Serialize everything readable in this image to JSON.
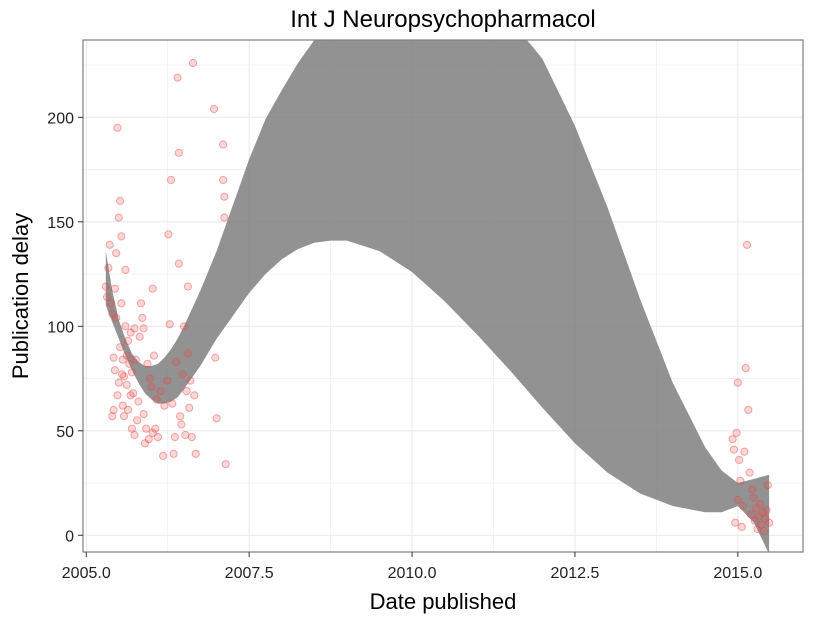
{
  "chart_data": {
    "type": "scatter",
    "title": "Int J Neuropsychopharmacol",
    "xlabel": "Date published",
    "ylabel": "Publication delay",
    "xlim": [
      2004.95,
      2016.0
    ],
    "ylim": [
      -8,
      237
    ],
    "x_ticks": [
      2005.0,
      2007.5,
      2010.0,
      2012.5,
      2015.0
    ],
    "x_tick_labels": [
      "2005.0",
      "2007.5",
      "2010.0",
      "2012.5",
      "2015.0"
    ],
    "y_ticks": [
      0,
      50,
      100,
      150,
      200
    ],
    "y_tick_labels": [
      "0",
      "50",
      "100",
      "150",
      "200"
    ],
    "grid": true,
    "colors": {
      "points": "#e8474a",
      "band": "#7a7a7a",
      "grid": "#ebebeb",
      "panel_border": "#7f7f7f"
    },
    "points": [
      [
        2005.3,
        119
      ],
      [
        2005.32,
        114
      ],
      [
        2005.34,
        128
      ],
      [
        2005.36,
        139
      ],
      [
        2005.38,
        111
      ],
      [
        2005.4,
        106
      ],
      [
        2005.4,
        57
      ],
      [
        2005.42,
        60
      ],
      [
        2005.42,
        85
      ],
      [
        2005.44,
        118
      ],
      [
        2005.44,
        79
      ],
      [
        2005.46,
        104
      ],
      [
        2005.46,
        135
      ],
      [
        2005.48,
        195
      ],
      [
        2005.48,
        67
      ],
      [
        2005.5,
        152
      ],
      [
        2005.5,
        73
      ],
      [
        2005.52,
        160
      ],
      [
        2005.52,
        90
      ],
      [
        2005.54,
        143
      ],
      [
        2005.54,
        111
      ],
      [
        2005.55,
        77
      ],
      [
        2005.56,
        84
      ],
      [
        2005.56,
        62
      ],
      [
        2005.58,
        76
      ],
      [
        2005.58,
        57
      ],
      [
        2005.6,
        127
      ],
      [
        2005.6,
        100
      ],
      [
        2005.62,
        86
      ],
      [
        2005.62,
        72
      ],
      [
        2005.64,
        93
      ],
      [
        2005.64,
        60
      ],
      [
        2005.66,
        82
      ],
      [
        2005.68,
        97
      ],
      [
        2005.68,
        67
      ],
      [
        2005.7,
        78
      ],
      [
        2005.7,
        51
      ],
      [
        2005.72,
        68
      ],
      [
        2005.74,
        99
      ],
      [
        2005.74,
        48
      ],
      [
        2005.76,
        84
      ],
      [
        2005.78,
        55
      ],
      [
        2005.8,
        64
      ],
      [
        2005.82,
        95
      ],
      [
        2005.84,
        111
      ],
      [
        2005.86,
        104
      ],
      [
        2005.88,
        99
      ],
      [
        2005.88,
        58
      ],
      [
        2005.9,
        44
      ],
      [
        2005.92,
        51
      ],
      [
        2005.94,
        82
      ],
      [
        2005.96,
        46
      ],
      [
        2005.98,
        75
      ],
      [
        2006.0,
        71
      ],
      [
        2006.02,
        118
      ],
      [
        2006.02,
        49
      ],
      [
        2006.04,
        86
      ],
      [
        2006.06,
        51
      ],
      [
        2006.08,
        65
      ],
      [
        2006.1,
        47
      ],
      [
        2006.14,
        69
      ],
      [
        2006.18,
        38
      ],
      [
        2006.2,
        62
      ],
      [
        2006.24,
        74
      ],
      [
        2006.26,
        144
      ],
      [
        2006.28,
        101
      ],
      [
        2006.3,
        170
      ],
      [
        2006.32,
        63
      ],
      [
        2006.34,
        39
      ],
      [
        2006.36,
        47
      ],
      [
        2006.38,
        83
      ],
      [
        2006.4,
        219
      ],
      [
        2006.42,
        183
      ],
      [
        2006.42,
        130
      ],
      [
        2006.44,
        57
      ],
      [
        2006.46,
        53
      ],
      [
        2006.48,
        77
      ],
      [
        2006.5,
        100
      ],
      [
        2006.52,
        48
      ],
      [
        2006.54,
        69
      ],
      [
        2006.56,
        87
      ],
      [
        2006.56,
        119
      ],
      [
        2006.58,
        61
      ],
      [
        2006.6,
        74
      ],
      [
        2006.62,
        47
      ],
      [
        2006.64,
        226
      ],
      [
        2006.66,
        67
      ],
      [
        2006.68,
        39
      ],
      [
        2006.96,
        204
      ],
      [
        2006.98,
        85
      ],
      [
        2007.0,
        56
      ],
      [
        2007.1,
        187
      ],
      [
        2007.1,
        170
      ],
      [
        2007.12,
        162
      ],
      [
        2007.12,
        152
      ],
      [
        2007.14,
        34
      ],
      [
        2014.92,
        46
      ],
      [
        2014.94,
        41
      ],
      [
        2014.96,
        6
      ],
      [
        2014.98,
        49
      ],
      [
        2015.0,
        17
      ],
      [
        2015.0,
        73
      ],
      [
        2015.02,
        36
      ],
      [
        2015.04,
        26
      ],
      [
        2015.06,
        4
      ],
      [
        2015.08,
        14
      ],
      [
        2015.1,
        40
      ],
      [
        2015.12,
        80
      ],
      [
        2015.14,
        139
      ],
      [
        2015.16,
        60
      ],
      [
        2015.18,
        30
      ],
      [
        2015.2,
        10
      ],
      [
        2015.22,
        22
      ],
      [
        2015.24,
        18
      ],
      [
        2015.26,
        7
      ],
      [
        2015.28,
        13
      ],
      [
        2015.3,
        3
      ],
      [
        2015.32,
        9
      ],
      [
        2015.34,
        15
      ],
      [
        2015.36,
        5
      ],
      [
        2015.38,
        11
      ],
      [
        2015.4,
        2
      ],
      [
        2015.42,
        8
      ],
      [
        2015.44,
        12
      ],
      [
        2015.46,
        24
      ],
      [
        2015.48,
        6
      ]
    ],
    "band_upper": [
      [
        2005.3,
        136
      ],
      [
        2005.4,
        117
      ],
      [
        2005.5,
        103
      ],
      [
        2005.6,
        94
      ],
      [
        2005.7,
        87
      ],
      [
        2005.8,
        83
      ],
      [
        2005.9,
        81
      ],
      [
        2006.0,
        81
      ],
      [
        2006.1,
        82
      ],
      [
        2006.2,
        85
      ],
      [
        2006.3,
        89
      ],
      [
        2006.4,
        94
      ],
      [
        2006.5,
        100
      ],
      [
        2006.75,
        117
      ],
      [
        2007.0,
        136
      ],
      [
        2007.25,
        158
      ],
      [
        2007.5,
        180
      ],
      [
        2007.75,
        199
      ],
      [
        2008.0,
        213
      ],
      [
        2008.25,
        226
      ],
      [
        2008.5,
        237
      ],
      [
        2008.75,
        246
      ],
      [
        2009.0,
        254
      ],
      [
        2009.5,
        262
      ],
      [
        2010.0,
        265
      ],
      [
        2010.5,
        264
      ],
      [
        2011.0,
        259
      ],
      [
        2011.5,
        247
      ],
      [
        2012.0,
        228
      ],
      [
        2012.5,
        196
      ],
      [
        2013.0,
        157
      ],
      [
        2013.5,
        113
      ],
      [
        2014.0,
        73
      ],
      [
        2014.5,
        42
      ],
      [
        2014.75,
        31
      ],
      [
        2015.0,
        25
      ],
      [
        2015.25,
        27
      ],
      [
        2015.48,
        29
      ]
    ],
    "band_lower": [
      [
        2005.3,
        110
      ],
      [
        2005.4,
        102
      ],
      [
        2005.5,
        94
      ],
      [
        2005.6,
        86
      ],
      [
        2005.7,
        79
      ],
      [
        2005.8,
        73
      ],
      [
        2005.9,
        68
      ],
      [
        2006.0,
        65
      ],
      [
        2006.1,
        63
      ],
      [
        2006.2,
        63
      ],
      [
        2006.3,
        64
      ],
      [
        2006.4,
        66
      ],
      [
        2006.5,
        70
      ],
      [
        2006.75,
        81
      ],
      [
        2007.0,
        94
      ],
      [
        2007.25,
        105
      ],
      [
        2007.5,
        116
      ],
      [
        2007.75,
        125
      ],
      [
        2008.0,
        132
      ],
      [
        2008.25,
        137
      ],
      [
        2008.5,
        140
      ],
      [
        2008.75,
        141
      ],
      [
        2009.0,
        141
      ],
      [
        2009.5,
        136
      ],
      [
        2010.0,
        126
      ],
      [
        2010.5,
        112
      ],
      [
        2011.0,
        96
      ],
      [
        2011.5,
        79
      ],
      [
        2012.0,
        61
      ],
      [
        2012.5,
        44
      ],
      [
        2013.0,
        30
      ],
      [
        2013.5,
        20
      ],
      [
        2014.0,
        14
      ],
      [
        2014.5,
        11
      ],
      [
        2014.75,
        11
      ],
      [
        2015.0,
        14
      ],
      [
        2015.25,
        6
      ],
      [
        2015.48,
        -9
      ]
    ]
  }
}
